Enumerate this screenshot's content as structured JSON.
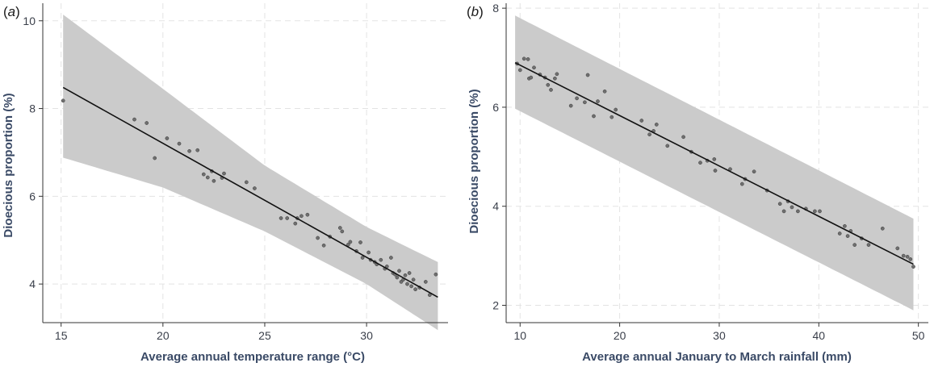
{
  "chart_data": [
    {
      "type": "scatter",
      "panel_label": {
        "open": "(",
        "letter": "a",
        "close": ")"
      },
      "xlabel": "Average annual temperature range (°C)",
      "ylabel": "Dioecious proportion (%)",
      "xlim": [
        14.1,
        34.0
      ],
      "ylim": [
        3.12,
        10.4
      ],
      "xticks": [
        15,
        20,
        25,
        30
      ],
      "yticks": [
        4,
        6,
        8,
        10
      ],
      "grid": true,
      "fit_line": {
        "x": [
          15.1,
          33.5
        ],
        "y": [
          8.48,
          3.7
        ]
      },
      "confidence_band": {
        "upper": [
          [
            15.1,
            10.14
          ],
          [
            20,
            8.45
          ],
          [
            25,
            6.7
          ],
          [
            30,
            5.3
          ],
          [
            33.5,
            4.5
          ]
        ],
        "lower": [
          [
            15.1,
            6.88
          ],
          [
            20,
            6.2
          ],
          [
            25,
            5.2
          ],
          [
            30,
            4.0
          ],
          [
            33.5,
            2.95
          ]
        ]
      },
      "points": [
        [
          15.1,
          8.18
        ],
        [
          18.6,
          7.75
        ],
        [
          19.2,
          7.67
        ],
        [
          19.6,
          6.87
        ],
        [
          20.2,
          7.32
        ],
        [
          20.8,
          7.2
        ],
        [
          21.3,
          7.03
        ],
        [
          21.7,
          7.05
        ],
        [
          22.0,
          6.5
        ],
        [
          22.2,
          6.43
        ],
        [
          22.4,
          6.57
        ],
        [
          22.5,
          6.35
        ],
        [
          22.9,
          6.42
        ],
        [
          23.0,
          6.52
        ],
        [
          24.1,
          6.32
        ],
        [
          24.5,
          6.18
        ],
        [
          25.8,
          5.5
        ],
        [
          26.1,
          5.5
        ],
        [
          26.5,
          5.38
        ],
        [
          26.6,
          5.5
        ],
        [
          26.8,
          5.55
        ],
        [
          27.1,
          5.58
        ],
        [
          27.6,
          5.05
        ],
        [
          27.9,
          4.88
        ],
        [
          28.2,
          5.08
        ],
        [
          28.7,
          5.28
        ],
        [
          28.8,
          5.2
        ],
        [
          29.1,
          4.9
        ],
        [
          29.2,
          4.96
        ],
        [
          29.5,
          4.75
        ],
        [
          29.7,
          4.95
        ],
        [
          29.8,
          4.6
        ],
        [
          30.1,
          4.72
        ],
        [
          30.2,
          4.55
        ],
        [
          30.4,
          4.5
        ],
        [
          30.5,
          4.45
        ],
        [
          30.7,
          4.55
        ],
        [
          30.9,
          4.35
        ],
        [
          31.0,
          4.4
        ],
        [
          31.2,
          4.6
        ],
        [
          31.3,
          4.25
        ],
        [
          31.4,
          4.22
        ],
        [
          31.5,
          4.15
        ],
        [
          31.6,
          4.3
        ],
        [
          31.7,
          4.05
        ],
        [
          31.8,
          4.1
        ],
        [
          31.9,
          4.2
        ],
        [
          32.0,
          4.0
        ],
        [
          32.1,
          4.25
        ],
        [
          32.2,
          3.95
        ],
        [
          32.3,
          4.1
        ],
        [
          32.4,
          3.88
        ],
        [
          32.6,
          3.92
        ],
        [
          32.9,
          4.05
        ],
        [
          33.1,
          3.75
        ],
        [
          33.4,
          4.22
        ]
      ]
    },
    {
      "type": "scatter",
      "panel_label": {
        "open": "(",
        "letter": "b",
        "close": ")"
      },
      "xlabel": "Average annual January to March rainfall (mm)",
      "ylabel": "Dioecious proportion (%)",
      "xlim": [
        8.6,
        51.0
      ],
      "ylim": [
        1.65,
        8.1
      ],
      "xticks": [
        10,
        20,
        30,
        40,
        50
      ],
      "yticks": [
        2,
        4,
        6,
        8
      ],
      "grid": true,
      "fit_line": {
        "x": [
          9.5,
          49.5
        ],
        "y": [
          6.9,
          2.83
        ]
      },
      "confidence_band": {
        "upper": [
          [
            9.5,
            7.85
          ],
          [
            49.5,
            3.75
          ]
        ],
        "lower": [
          [
            9.5,
            5.97
          ],
          [
            49.5,
            1.9
          ]
        ]
      },
      "points": [
        [
          9.7,
          6.88
        ],
        [
          10.0,
          6.75
        ],
        [
          10.4,
          6.98
        ],
        [
          10.8,
          6.97
        ],
        [
          10.9,
          6.58
        ],
        [
          11.1,
          6.6
        ],
        [
          11.4,
          6.8
        ],
        [
          12.0,
          6.66
        ],
        [
          12.5,
          6.6
        ],
        [
          12.8,
          6.45
        ],
        [
          13.1,
          6.35
        ],
        [
          13.5,
          6.58
        ],
        [
          13.7,
          6.67
        ],
        [
          15.1,
          6.03
        ],
        [
          15.7,
          6.18
        ],
        [
          16.5,
          6.1
        ],
        [
          16.8,
          6.65
        ],
        [
          17.4,
          5.82
        ],
        [
          17.8,
          6.12
        ],
        [
          18.5,
          6.32
        ],
        [
          19.2,
          5.8
        ],
        [
          19.6,
          5.95
        ],
        [
          22.2,
          5.73
        ],
        [
          23.0,
          5.45
        ],
        [
          23.4,
          5.52
        ],
        [
          23.7,
          5.65
        ],
        [
          24.8,
          5.22
        ],
        [
          26.4,
          5.4
        ],
        [
          27.2,
          5.1
        ],
        [
          28.1,
          4.88
        ],
        [
          28.8,
          4.92
        ],
        [
          29.5,
          4.95
        ],
        [
          29.6,
          4.72
        ],
        [
          31.1,
          4.75
        ],
        [
          32.3,
          4.45
        ],
        [
          32.6,
          4.55
        ],
        [
          33.5,
          4.7
        ],
        [
          34.8,
          4.32
        ],
        [
          36.1,
          4.05
        ],
        [
          36.5,
          3.9
        ],
        [
          36.9,
          4.1
        ],
        [
          37.3,
          3.98
        ],
        [
          37.9,
          3.9
        ],
        [
          38.7,
          3.95
        ],
        [
          39.6,
          3.9
        ],
        [
          40.1,
          3.9
        ],
        [
          42.1,
          3.45
        ],
        [
          42.6,
          3.6
        ],
        [
          42.9,
          3.4
        ],
        [
          43.2,
          3.5
        ],
        [
          43.6,
          3.22
        ],
        [
          44.3,
          3.35
        ],
        [
          45.0,
          3.22
        ],
        [
          46.4,
          3.55
        ],
        [
          47.9,
          3.15
        ],
        [
          48.5,
          3.0
        ],
        [
          48.9,
          2.98
        ],
        [
          49.2,
          2.93
        ],
        [
          49.5,
          2.78
        ]
      ]
    }
  ]
}
